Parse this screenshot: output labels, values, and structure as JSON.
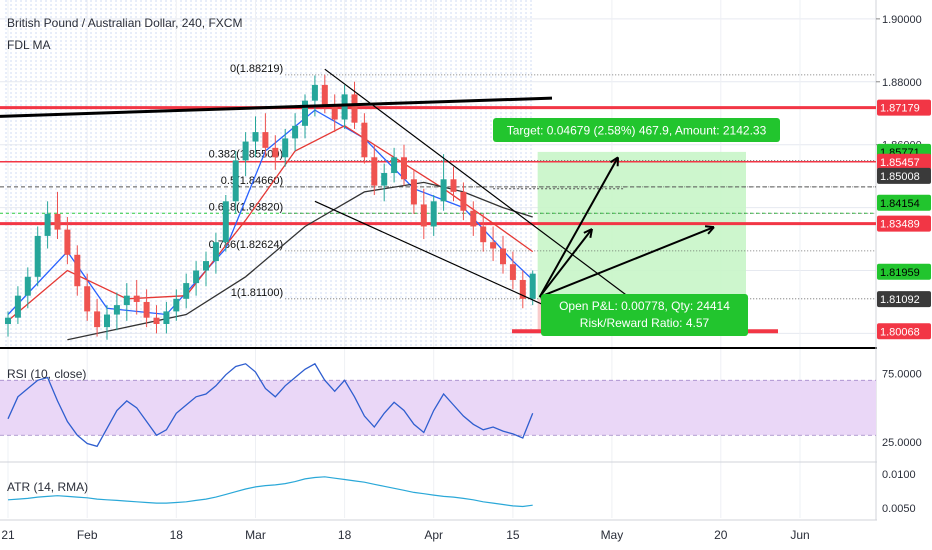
{
  "header": {
    "title": "British Pound / Australian Dollar, 240, FXCM",
    "indicator": "FDL MA"
  },
  "main_pane": {
    "price_axis": {
      "min": 1.796,
      "max": 1.906,
      "ticks": [
        "1.90000",
        "1.88000",
        "1.86000"
      ]
    },
    "price_tags": [
      {
        "value": 1.87179,
        "label": "1.87179",
        "bg": "#f23645",
        "fg": "#ffffff"
      },
      {
        "value": 1.85771,
        "label": "1.85771",
        "bg": "#22c52e",
        "fg": "#000000"
      },
      {
        "value": 1.85457,
        "label": "1.85457",
        "bg": "#f23645",
        "fg": "#ffffff"
      },
      {
        "value": 1.85008,
        "label": "1.85008",
        "bg": "#3a3a3a",
        "fg": "#ffffff"
      },
      {
        "value": 1.84154,
        "label": "1.84154",
        "bg": "#22c52e",
        "fg": "#000000"
      },
      {
        "value": 1.83489,
        "label": "1.83489",
        "bg": "#f23645",
        "fg": "#ffffff"
      },
      {
        "value": 1.81959,
        "label": "1.81959",
        "bg": "#22c52e",
        "fg": "#000000"
      },
      {
        "value": 1.81092,
        "label": "1.81092",
        "bg": "#3a3a3a",
        "fg": "#ffffff"
      },
      {
        "value": 1.80068,
        "label": "1.80068",
        "bg": "#f23645",
        "fg": "#ffffff"
      }
    ],
    "fib_levels": [
      {
        "ratio": "0",
        "price": 1.88219,
        "label": "0(1.88219)"
      },
      {
        "ratio": "0.382",
        "price": 1.855,
        "label": "0.382(1.85500)"
      },
      {
        "ratio": "0.5",
        "price": 1.8466,
        "label": "0.5(1.84660)"
      },
      {
        "ratio": "0.618",
        "price": 1.8382,
        "label": "0.618(1.83820)"
      },
      {
        "ratio": "0.786",
        "price": 1.82624,
        "label": "0.786(1.82624)"
      },
      {
        "ratio": "1",
        "price": 1.811,
        "label": "1(1.81100)"
      }
    ],
    "position": {
      "target_label": "Target: 0.04679 (2.58%) 467.9, Amount: 2142.33",
      "pnl_label": "Open P&L: 0.00778, Qty: 24414",
      "rr_label": "Risk/Reward Ratio: 4.57",
      "entry": 1.81092,
      "target": 1.85771,
      "stop": 1.80068
    }
  },
  "rsi_pane": {
    "label": "RSI (10, close)",
    "ticks": [
      "75.0000",
      "25.0000"
    ],
    "bands": [
      70,
      30
    ],
    "range": [
      12,
      92
    ]
  },
  "atr_pane": {
    "label": "ATR (14, RMA)",
    "ticks": [
      "0.0100",
      "0.0050"
    ],
    "range": [
      0.0035,
      0.0115
    ]
  },
  "time_axis": {
    "labels": [
      {
        "text": "21",
        "i": 0
      },
      {
        "text": "Feb",
        "i": 8
      },
      {
        "text": "18",
        "i": 17
      },
      {
        "text": "Mar",
        "i": 25
      },
      {
        "text": "18",
        "i": 34
      },
      {
        "text": "Apr",
        "i": 43
      },
      {
        "text": "15",
        "i": 51
      },
      {
        "text": "May",
        "i": 61
      },
      {
        "text": "20",
        "i": 72
      },
      {
        "text": "Jun",
        "i": 80
      }
    ]
  },
  "colors": {
    "candle_up": "#26a69a",
    "candle_down": "#ef5350",
    "ma_blue": "#2962ff",
    "ma_red": "#e53935",
    "ma_dark": "#333333",
    "hline_red": "#f23645",
    "rsi_line": "#2f5ecf",
    "rsi_band": "#ead7f7",
    "atr_line": "#2aa8d8",
    "profit_zone": "#c8f5c8",
    "loss_zone": "#f8c6c6",
    "label_green": "#22c52e"
  },
  "chart_data": {
    "type": "candlestick",
    "x_unit": "bar index (240-minute bars, 1 index = 2 bars)",
    "candles": [
      {
        "i": 0,
        "o": 1.803,
        "h": 1.807,
        "l": 1.799,
        "c": 1.805
      },
      {
        "i": 1,
        "o": 1.805,
        "h": 1.815,
        "l": 1.803,
        "c": 1.812
      },
      {
        "i": 2,
        "o": 1.812,
        "h": 1.821,
        "l": 1.808,
        "c": 1.818
      },
      {
        "i": 3,
        "o": 1.818,
        "h": 1.834,
        "l": 1.815,
        "c": 1.831
      },
      {
        "i": 4,
        "o": 1.831,
        "h": 1.842,
        "l": 1.827,
        "c": 1.838
      },
      {
        "i": 5,
        "o": 1.838,
        "h": 1.845,
        "l": 1.83,
        "c": 1.833
      },
      {
        "i": 6,
        "o": 1.833,
        "h": 1.837,
        "l": 1.822,
        "c": 1.825
      },
      {
        "i": 7,
        "o": 1.825,
        "h": 1.828,
        "l": 1.812,
        "c": 1.815
      },
      {
        "i": 8,
        "o": 1.815,
        "h": 1.819,
        "l": 1.804,
        "c": 1.807
      },
      {
        "i": 9,
        "o": 1.807,
        "h": 1.811,
        "l": 1.799,
        "c": 1.802
      },
      {
        "i": 10,
        "o": 1.802,
        "h": 1.809,
        "l": 1.798,
        "c": 1.806
      },
      {
        "i": 11,
        "o": 1.806,
        "h": 1.813,
        "l": 1.801,
        "c": 1.809
      },
      {
        "i": 12,
        "o": 1.809,
        "h": 1.816,
        "l": 1.804,
        "c": 1.812
      },
      {
        "i": 13,
        "o": 1.812,
        "h": 1.817,
        "l": 1.806,
        "c": 1.81
      },
      {
        "i": 14,
        "o": 1.81,
        "h": 1.814,
        "l": 1.802,
        "c": 1.805
      },
      {
        "i": 15,
        "o": 1.805,
        "h": 1.809,
        "l": 1.8,
        "c": 1.803
      },
      {
        "i": 16,
        "o": 1.803,
        "h": 1.81,
        "l": 1.8,
        "c": 1.807
      },
      {
        "i": 17,
        "o": 1.807,
        "h": 1.814,
        "l": 1.804,
        "c": 1.811
      },
      {
        "i": 18,
        "o": 1.811,
        "h": 1.819,
        "l": 1.808,
        "c": 1.816
      },
      {
        "i": 19,
        "o": 1.816,
        "h": 1.823,
        "l": 1.812,
        "c": 1.82
      },
      {
        "i": 20,
        "o": 1.82,
        "h": 1.826,
        "l": 1.815,
        "c": 1.823
      },
      {
        "i": 21,
        "o": 1.823,
        "h": 1.832,
        "l": 1.819,
        "c": 1.829
      },
      {
        "i": 22,
        "o": 1.829,
        "h": 1.844,
        "l": 1.826,
        "c": 1.842
      },
      {
        "i": 23,
        "o": 1.842,
        "h": 1.858,
        "l": 1.838,
        "c": 1.855
      },
      {
        "i": 24,
        "o": 1.855,
        "h": 1.864,
        "l": 1.85,
        "c": 1.861
      },
      {
        "i": 25,
        "o": 1.861,
        "h": 1.869,
        "l": 1.856,
        "c": 1.864
      },
      {
        "i": 26,
        "o": 1.864,
        "h": 1.87,
        "l": 1.856,
        "c": 1.859
      },
      {
        "i": 27,
        "o": 1.859,
        "h": 1.863,
        "l": 1.852,
        "c": 1.856
      },
      {
        "i": 28,
        "o": 1.856,
        "h": 1.865,
        "l": 1.853,
        "c": 1.862
      },
      {
        "i": 29,
        "o": 1.862,
        "h": 1.87,
        "l": 1.858,
        "c": 1.866
      },
      {
        "i": 30,
        "o": 1.866,
        "h": 1.876,
        "l": 1.862,
        "c": 1.874
      },
      {
        "i": 31,
        "o": 1.874,
        "h": 1.882,
        "l": 1.869,
        "c": 1.879
      },
      {
        "i": 32,
        "o": 1.879,
        "h": 1.8822,
        "l": 1.87,
        "c": 1.872
      },
      {
        "i": 33,
        "o": 1.872,
        "h": 1.876,
        "l": 1.864,
        "c": 1.868
      },
      {
        "i": 34,
        "o": 1.868,
        "h": 1.879,
        "l": 1.865,
        "c": 1.876
      },
      {
        "i": 35,
        "o": 1.876,
        "h": 1.88,
        "l": 1.865,
        "c": 1.867
      },
      {
        "i": 36,
        "o": 1.867,
        "h": 1.87,
        "l": 1.854,
        "c": 1.856
      },
      {
        "i": 37,
        "o": 1.856,
        "h": 1.86,
        "l": 1.844,
        "c": 1.847
      },
      {
        "i": 38,
        "o": 1.847,
        "h": 1.854,
        "l": 1.842,
        "c": 1.851
      },
      {
        "i": 39,
        "o": 1.851,
        "h": 1.859,
        "l": 1.848,
        "c": 1.856
      },
      {
        "i": 40,
        "o": 1.856,
        "h": 1.86,
        "l": 1.847,
        "c": 1.849
      },
      {
        "i": 41,
        "o": 1.849,
        "h": 1.852,
        "l": 1.838,
        "c": 1.841
      },
      {
        "i": 42,
        "o": 1.841,
        "h": 1.846,
        "l": 1.83,
        "c": 1.834
      },
      {
        "i": 43,
        "o": 1.834,
        "h": 1.844,
        "l": 1.831,
        "c": 1.842
      },
      {
        "i": 44,
        "o": 1.842,
        "h": 1.857,
        "l": 1.839,
        "c": 1.849
      },
      {
        "i": 45,
        "o": 1.849,
        "h": 1.853,
        "l": 1.842,
        "c": 1.845
      },
      {
        "i": 46,
        "o": 1.845,
        "h": 1.848,
        "l": 1.836,
        "c": 1.839
      },
      {
        "i": 47,
        "o": 1.839,
        "h": 1.842,
        "l": 1.831,
        "c": 1.834
      },
      {
        "i": 48,
        "o": 1.834,
        "h": 1.838,
        "l": 1.826,
        "c": 1.829
      },
      {
        "i": 49,
        "o": 1.829,
        "h": 1.834,
        "l": 1.823,
        "c": 1.827
      },
      {
        "i": 50,
        "o": 1.827,
        "h": 1.831,
        "l": 1.819,
        "c": 1.822
      },
      {
        "i": 51,
        "o": 1.822,
        "h": 1.826,
        "l": 1.814,
        "c": 1.817
      },
      {
        "i": 52,
        "o": 1.817,
        "h": 1.82,
        "l": 1.808,
        "c": 1.811
      },
      {
        "i": 53,
        "o": 1.811,
        "h": 1.82,
        "l": 1.809,
        "c": 1.819
      }
    ],
    "moving_averages": [
      {
        "color_key": "ma_blue",
        "points": [
          [
            0,
            1.806
          ],
          [
            6,
            1.826
          ],
          [
            10,
            1.808
          ],
          [
            16,
            1.806
          ],
          [
            22,
            1.827
          ],
          [
            26,
            1.858
          ],
          [
            31,
            1.871
          ],
          [
            36,
            1.862
          ],
          [
            41,
            1.846
          ],
          [
            46,
            1.84
          ],
          [
            51,
            1.823
          ],
          [
            53,
            1.817
          ]
        ]
      },
      {
        "color_key": "ma_red",
        "points": [
          [
            0,
            1.804
          ],
          [
            6,
            1.82
          ],
          [
            12,
            1.811
          ],
          [
            18,
            1.812
          ],
          [
            24,
            1.836
          ],
          [
            29,
            1.858
          ],
          [
            34,
            1.866
          ],
          [
            39,
            1.856
          ],
          [
            44,
            1.846
          ],
          [
            49,
            1.835
          ],
          [
            53,
            1.826
          ]
        ]
      },
      {
        "color_key": "ma_dark",
        "points": [
          [
            6,
            1.798
          ],
          [
            12,
            1.802
          ],
          [
            18,
            1.806
          ],
          [
            24,
            1.818
          ],
          [
            30,
            1.834
          ],
          [
            36,
            1.845
          ],
          [
            42,
            1.848
          ],
          [
            46,
            1.845
          ],
          [
            50,
            1.84
          ],
          [
            53,
            1.837
          ]
        ]
      }
    ],
    "horizontal_levels": [
      1.87179,
      1.85457,
      1.83489,
      1.80068
    ],
    "rsi_values": [
      42,
      58,
      64,
      70,
      72,
      55,
      40,
      30,
      24,
      22,
      35,
      48,
      55,
      50,
      40,
      30,
      34,
      46,
      52,
      58,
      60,
      66,
      74,
      80,
      82,
      76,
      64,
      58,
      66,
      72,
      78,
      82,
      70,
      62,
      70,
      58,
      44,
      36,
      46,
      54,
      48,
      38,
      32,
      48,
      60,
      52,
      44,
      38,
      34,
      36,
      33,
      31,
      28,
      46
    ],
    "atr_values": [
      0.0062,
      0.0063,
      0.0064,
      0.0066,
      0.0067,
      0.0068,
      0.0067,
      0.0066,
      0.0065,
      0.0063,
      0.0062,
      0.0061,
      0.006,
      0.0059,
      0.0058,
      0.0057,
      0.0057,
      0.0058,
      0.0059,
      0.0061,
      0.0063,
      0.0066,
      0.007,
      0.0074,
      0.0078,
      0.0081,
      0.0083,
      0.0084,
      0.0086,
      0.0089,
      0.0093,
      0.0095,
      0.0096,
      0.0094,
      0.0092,
      0.009,
      0.0088,
      0.0085,
      0.0082,
      0.0079,
      0.0076,
      0.0073,
      0.0071,
      0.0069,
      0.0067,
      0.0066,
      0.0064,
      0.0062,
      0.0059,
      0.0057,
      0.0055,
      0.0053,
      0.0052,
      0.0054
    ]
  }
}
